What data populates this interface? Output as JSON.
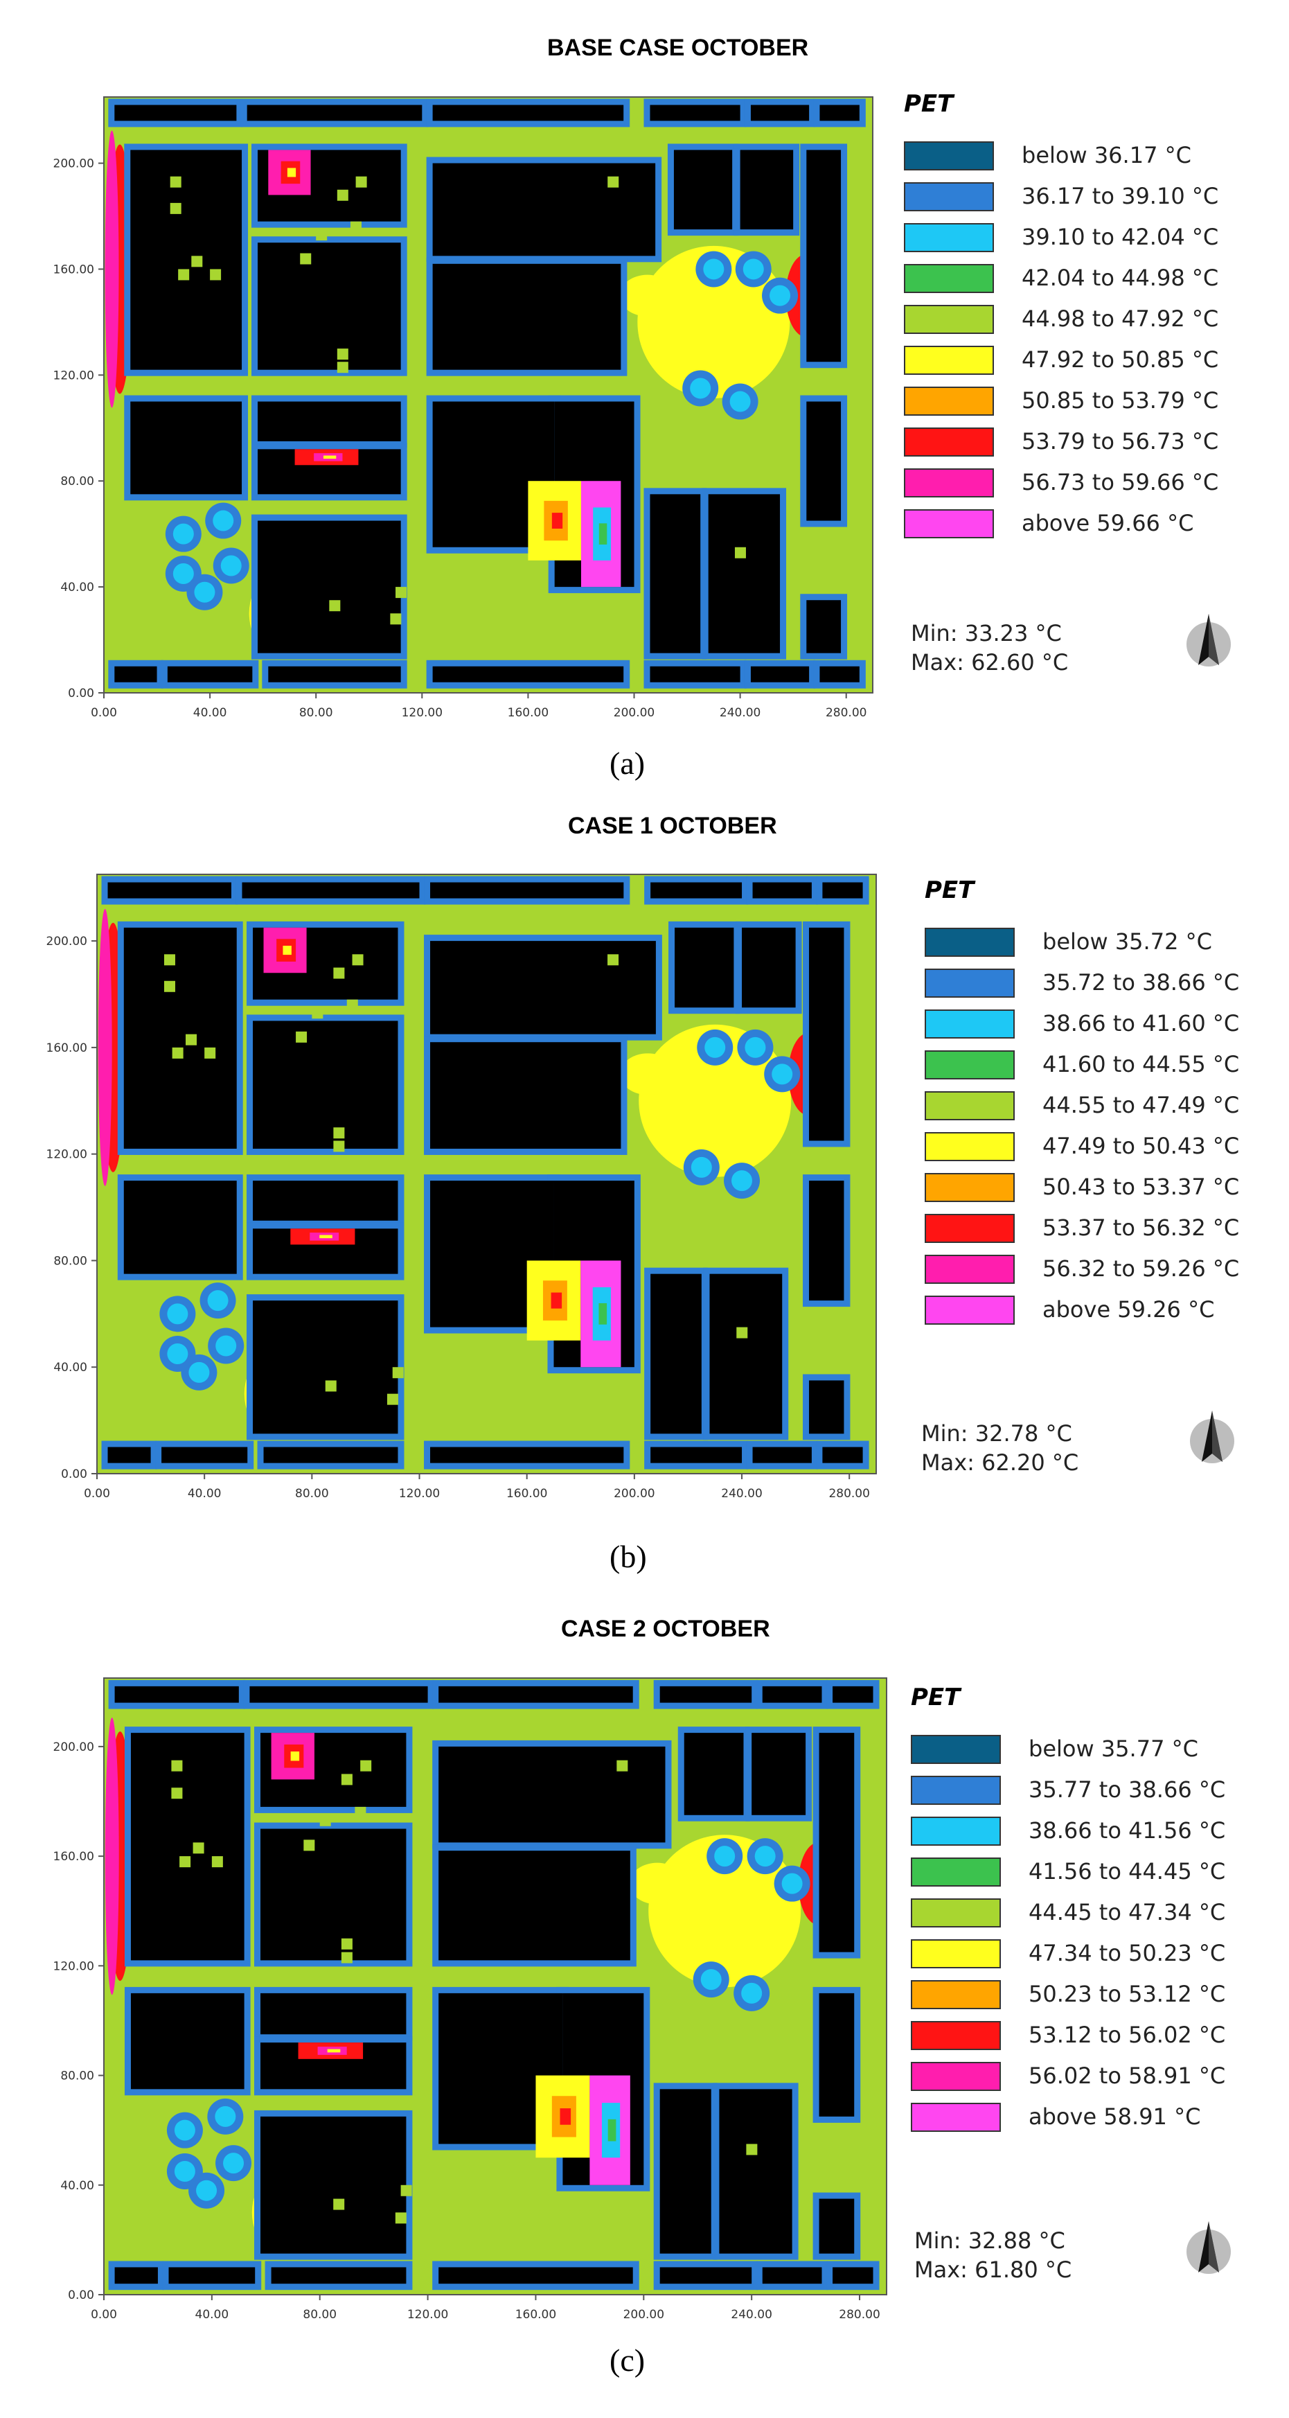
{
  "panels": [
    {
      "title": "BASE CASE  OCTOBER",
      "caption": "(a)",
      "legend_title": "PET",
      "legend": [
        {
          "label": "below 36.17 °C",
          "color": "#0a5f87"
        },
        {
          "label": "36.17 to 39.10 °C",
          "color": "#2f7fd6"
        },
        {
          "label": "39.10 to 42.04 °C",
          "color": "#1ec8f5"
        },
        {
          "label": "42.04 to 44.98 °C",
          "color": "#3cc24e"
        },
        {
          "label": "44.98 to 47.92 °C",
          "color": "#a8d630"
        },
        {
          "label": "47.92 to 50.85 °C",
          "color": "#ffff1e"
        },
        {
          "label": "50.85 to 53.79 °C",
          "color": "#ffa500"
        },
        {
          "label": "53.79 to 56.73 °C",
          "color": "#ff1414"
        },
        {
          "label": "56.73 to 59.66 °C",
          "color": "#ff1eae"
        },
        {
          "label": "above 59.66 °C",
          "color": "#ff46f0"
        }
      ],
      "min_label": "Min: 33.23 °C",
      "max_label": "Max: 62.60 °C"
    },
    {
      "title": "CASE 1  OCTOBER",
      "caption": "(b)",
      "legend_title": "PET",
      "legend": [
        {
          "label": "below 35.72 °C",
          "color": "#0a5f87"
        },
        {
          "label": "35.72 to 38.66 °C",
          "color": "#2f7fd6"
        },
        {
          "label": "38.66 to 41.60 °C",
          "color": "#1ec8f5"
        },
        {
          "label": "41.60 to 44.55 °C",
          "color": "#3cc24e"
        },
        {
          "label": "44.55 to 47.49 °C",
          "color": "#a8d630"
        },
        {
          "label": "47.49 to 50.43 °C",
          "color": "#ffff1e"
        },
        {
          "label": "50.43 to 53.37 °C",
          "color": "#ffa500"
        },
        {
          "label": "53.37 to 56.32 °C",
          "color": "#ff1414"
        },
        {
          "label": "56.32 to 59.26 °C",
          "color": "#ff1eae"
        },
        {
          "label": "above 59.26 °C",
          "color": "#ff46f0"
        }
      ],
      "min_label": "Min: 32.78 °C",
      "max_label": "Max: 62.20 °C"
    },
    {
      "title": "CASE 2 OCTOBER",
      "caption": "(c)",
      "legend_title": "PET",
      "legend": [
        {
          "label": "below 35.77 °C",
          "color": "#0a5f87"
        },
        {
          "label": "35.77 to 38.66 °C",
          "color": "#2f7fd6"
        },
        {
          "label": "38.66 to 41.56 °C",
          "color": "#1ec8f5"
        },
        {
          "label": "41.56 to 44.45 °C",
          "color": "#3cc24e"
        },
        {
          "label": "44.45 to 47.34 °C",
          "color": "#a8d630"
        },
        {
          "label": "47.34 to 50.23 °C",
          "color": "#ffff1e"
        },
        {
          "label": "50.23 to 53.12 °C",
          "color": "#ffa500"
        },
        {
          "label": "53.12 to 56.02 °C",
          "color": "#ff1414"
        },
        {
          "label": "56.02 to 58.91 °C",
          "color": "#ff1eae"
        },
        {
          "label": "above 58.91 °C",
          "color": "#ff46f0"
        }
      ],
      "min_label": "Min: 32.88 °C",
      "max_label": "Max: 61.80 °C"
    }
  ],
  "axes": {
    "x_ticks": [
      "0.00",
      "40.00",
      "80.00",
      "120.00",
      "160.00",
      "200.00",
      "240.00",
      "280.00"
    ],
    "y_ticks": [
      "0.00",
      "40.00",
      "80.00",
      "120.00",
      "160.00",
      "200.00"
    ],
    "x_range": [
      0,
      290
    ],
    "y_range": [
      0,
      225
    ]
  },
  "colors": {
    "building": "#000000",
    "street": "#a8d630",
    "building_edge": "#2f7fd6"
  }
}
